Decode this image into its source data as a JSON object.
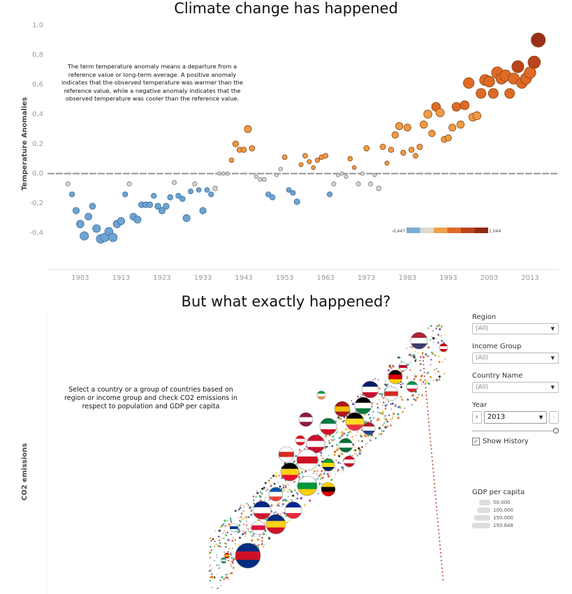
{
  "top_chart": {
    "title": "Climate change has happened",
    "note": "The term temperature anomaly means a departure from a reference value or long-term average. A positive anomaly indicates that the observed temperature was warmer than the reference value, while a negative anomaly indicates that the observed temperature was cooler than the reference value.",
    "color_legend": {
      "min_label": "-0,447",
      "max_label": "1,044",
      "colors": [
        "#7aaed6",
        "#dcd9cf",
        "#f0a14a",
        "#de6b24",
        "#b8451b",
        "#8c2a14"
      ]
    }
  },
  "bottom_chart": {
    "title": "But what exactly happened?",
    "note": "Select a country or a group of countries based on region or income group and check CO2 emissions in respect to population and GDP per capita",
    "ylabel": "CO2 emissions"
  },
  "filters": {
    "region": {
      "label": "Region",
      "value": "(All)"
    },
    "income_group": {
      "label": "Income Group",
      "value": "(All)"
    },
    "country_name": {
      "label": "Country Name",
      "value": "(All)"
    },
    "year": {
      "label": "Year",
      "value": "2013",
      "prev": "‹",
      "next": "›",
      "slider_fraction": 1.0
    },
    "show_history": {
      "label": "Show History",
      "checked": true,
      "mark": "✓"
    }
  },
  "gdp_legend": {
    "title": "GDP per capita",
    "items": [
      {
        "label": "50.000",
        "value": 50000
      },
      {
        "label": "100.000",
        "value": 100000
      },
      {
        "label": "150.000",
        "value": 150000
      },
      {
        "label": "193.648",
        "value": 193648
      }
    ]
  },
  "chart_data": [
    {
      "type": "scatter",
      "title": "Climate change has happened",
      "ylabel": "Temperature Anomalies",
      "xlabel": "",
      "xlim": [
        1895,
        2020
      ],
      "ylim": [
        -0.5,
        1.0
      ],
      "xticks": [
        1903,
        1913,
        1923,
        1933,
        1943,
        1953,
        1963,
        1973,
        1983,
        1993,
        2003,
        2013
      ],
      "xtick_labels": [
        "1903",
        "1913",
        "1923",
        "1933",
        "1943",
        "1953",
        "1963",
        "1973",
        "1983",
        "1993",
        "2003",
        "2013"
      ],
      "yticks": [
        -0.4,
        -0.2,
        0.0,
        0.2,
        0.4,
        0.6,
        0.8,
        1.0
      ],
      "ytick_labels": [
        "-0,4",
        "-0,2",
        "0,0",
        "0,2",
        "0,4",
        "0,6",
        "0,8",
        "1,0"
      ],
      "reference_line": 0.0,
      "x": [
        1900,
        1901,
        1902,
        1903,
        1904,
        1905,
        1906,
        1907,
        1908,
        1909,
        1910,
        1911,
        1912,
        1913,
        1914,
        1915,
        1916,
        1917,
        1918,
        1919,
        1920,
        1921,
        1922,
        1923,
        1924,
        1925,
        1926,
        1927,
        1928,
        1929,
        1930,
        1931,
        1932,
        1933,
        1934,
        1935,
        1936,
        1937,
        1938,
        1939,
        1940,
        1941,
        1942,
        1943,
        1944,
        1945,
        1946,
        1947,
        1948,
        1949,
        1950,
        1951,
        1952,
        1953,
        1954,
        1955,
        1956,
        1957,
        1958,
        1959,
        1960,
        1961,
        1962,
        1963,
        1964,
        1965,
        1966,
        1967,
        1968,
        1969,
        1970,
        1971,
        1972,
        1973,
        1974,
        1975,
        1976,
        1977,
        1978,
        1979,
        1980,
        1981,
        1982,
        1983,
        1984,
        1985,
        1986,
        1987,
        1988,
        1989,
        1990,
        1991,
        1992,
        1993,
        1994,
        1995,
        1996,
        1997,
        1998,
        1999,
        2000,
        2001,
        2002,
        2003,
        2004,
        2005,
        2006,
        2007,
        2008,
        2009,
        2010,
        2011,
        2012,
        2013,
        2014,
        2015
      ],
      "y": [
        -0.07,
        -0.14,
        -0.25,
        -0.34,
        -0.42,
        -0.29,
        -0.22,
        -0.37,
        -0.44,
        -0.43,
        -0.39,
        -0.43,
        -0.34,
        -0.32,
        -0.14,
        -0.07,
        -0.29,
        -0.31,
        -0.21,
        -0.21,
        -0.21,
        -0.15,
        -0.22,
        -0.25,
        -0.22,
        -0.16,
        -0.06,
        -0.15,
        -0.17,
        -0.3,
        -0.12,
        -0.07,
        -0.11,
        -0.25,
        -0.11,
        -0.14,
        -0.1,
        0.0,
        0.0,
        0.0,
        0.09,
        0.2,
        0.16,
        0.16,
        0.3,
        0.17,
        -0.02,
        -0.04,
        -0.04,
        -0.14,
        -0.16,
        -0.01,
        0.03,
        0.11,
        -0.11,
        -0.13,
        -0.19,
        0.06,
        0.12,
        0.08,
        0.04,
        0.09,
        0.11,
        0.12,
        -0.14,
        -0.07,
        -0.01,
        0.0,
        -0.02,
        0.1,
        0.04,
        -0.07,
        0.0,
        0.17,
        -0.07,
        -0.01,
        -0.1,
        0.18,
        0.07,
        0.16,
        0.26,
        0.32,
        0.14,
        0.31,
        0.16,
        0.12,
        0.18,
        0.33,
        0.4,
        0.27,
        0.45,
        0.41,
        0.23,
        0.24,
        0.31,
        0.45,
        0.33,
        0.46,
        0.61,
        0.38,
        0.39,
        0.54,
        0.63,
        0.62,
        0.54,
        0.68,
        0.64,
        0.66,
        0.54,
        0.64,
        0.72,
        0.61,
        0.64,
        0.68,
        0.75,
        0.9
      ],
      "color_scale": {
        "min": -0.447,
        "max": 1.044
      }
    },
    {
      "type": "scatter",
      "title": "But what exactly happened?",
      "ylabel": "CO2 emissions",
      "xlabel": "",
      "note": "Bubble size = GDP per capita; markers are country flags with history trails"
    }
  ]
}
